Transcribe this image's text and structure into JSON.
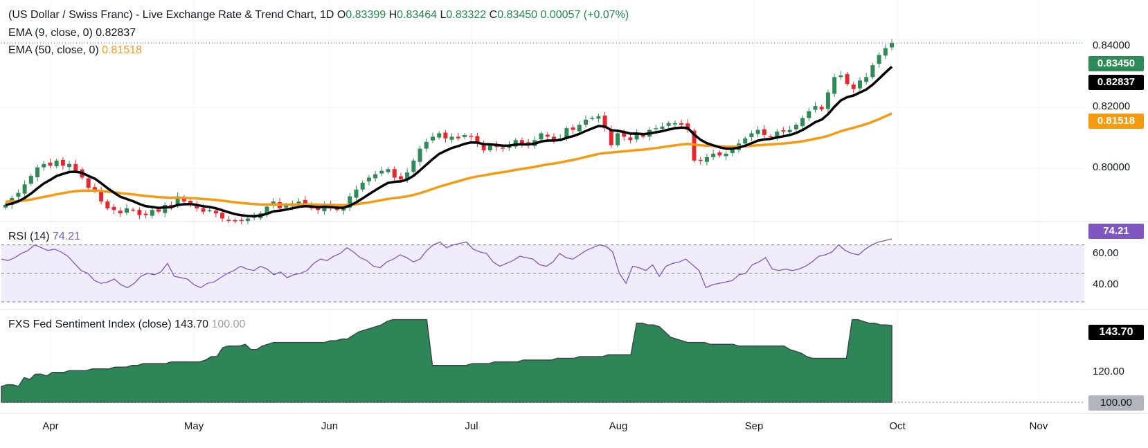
{
  "header": {
    "title": "(US Dollar / Swiss Franc) - Live Exchange Rate & Trend Chart, 1D",
    "open_label": "O",
    "open": "0.83399",
    "high_label": "H",
    "high": "0.83464",
    "low_label": "L",
    "low": "0.83322",
    "close_label": "C",
    "close": "0.83450",
    "change": "0.00057 (+0.07%)",
    "ema9_label": "EMA (9, close, 0)",
    "ema9_value": "0.82837",
    "ema50_label": "EMA (50, close, 0)",
    "ema50_value": "0.81518"
  },
  "rsi_panel": {
    "label": "RSI (14)",
    "value": "74.21"
  },
  "fxs_panel": {
    "label": "FXS Fed Sentiment Index (close)",
    "value": "143.70",
    "baseline": "100.00"
  },
  "price_axis": {
    "ticks": [
      "0.84000",
      "0.82000",
      "0.80000"
    ],
    "last_price": "0.83450",
    "ema9_badge": "0.82837",
    "ema50_badge": "0.81518"
  },
  "rsi_axis": {
    "ticks": [
      "60.00",
      "40.00"
    ],
    "badge": "74.21"
  },
  "fxs_axis": {
    "ticks": [
      "120.00"
    ],
    "badge": "143.70",
    "base_badge": "100.00"
  },
  "x_axis": {
    "labels": [
      "Apr",
      "May",
      "Jun",
      "Jul",
      "Aug",
      "Sep",
      "Oct",
      "Nov"
    ]
  },
  "colors": {
    "up": "#2e8b57",
    "down": "#e5282e",
    "ema9": "#000000",
    "ema50": "#f59b12",
    "rsi": "#7e57c2",
    "fxs_fill": "#2e8555",
    "last_price_badge": "#2e8b57"
  },
  "chart_data": [
    {
      "type": "candlestick",
      "title": "(US Dollar / Swiss Franc) - Live Exchange Rate & Trend Chart, 1D",
      "ylim": [
        0.7825,
        0.8455
      ],
      "x_labels": [
        "Apr",
        "May",
        "Jun",
        "Jul",
        "Aug",
        "Sep",
        "Oct",
        "Nov"
      ],
      "close_series": [
        0.787,
        0.789,
        0.7905,
        0.793,
        0.7955,
        0.798,
        0.799,
        0.7985,
        0.8,
        0.7985,
        0.799,
        0.797,
        0.795,
        0.792,
        0.7915,
        0.788,
        0.786,
        0.7855,
        0.7845,
        0.786,
        0.7855,
        0.784,
        0.784,
        0.7855,
        0.785,
        0.787,
        0.7865,
        0.7895,
        0.788,
        0.7875,
        0.786,
        0.785,
        0.7855,
        0.7845,
        0.783,
        0.7825,
        0.7822,
        0.7825,
        0.783,
        0.7835,
        0.7845,
        0.7865,
        0.788,
        0.786,
        0.787,
        0.7875,
        0.788,
        0.7875,
        0.786,
        0.7855,
        0.787,
        0.786,
        0.7855,
        0.786,
        0.7895,
        0.7915,
        0.7935,
        0.795,
        0.796,
        0.797,
        0.7975,
        0.795,
        0.7945,
        0.7965,
        0.8,
        0.8035,
        0.8055,
        0.807,
        0.808,
        0.8065,
        0.807,
        0.8065,
        0.8075,
        0.807,
        0.805,
        0.803,
        0.8045,
        0.804,
        0.8035,
        0.8045,
        0.806,
        0.805,
        0.8045,
        0.806,
        0.808,
        0.807,
        0.806,
        0.8065,
        0.8095,
        0.809,
        0.8105,
        0.812,
        0.8125,
        0.813,
        0.8095,
        0.8045,
        0.808,
        0.807,
        0.806,
        0.808,
        0.807,
        0.809,
        0.8095,
        0.81,
        0.811,
        0.811,
        0.8105,
        0.809,
        0.8,
        0.8,
        0.801,
        0.802,
        0.8015,
        0.802,
        0.8035,
        0.805,
        0.8065,
        0.808,
        0.809,
        0.8075,
        0.807,
        0.8085,
        0.8085,
        0.809,
        0.8105,
        0.8125,
        0.8145,
        0.816,
        0.815,
        0.82,
        0.8245,
        0.825,
        0.8225,
        0.821,
        0.8235,
        0.8245,
        0.828,
        0.831,
        0.833,
        0.8345
      ]
    },
    {
      "type": "line",
      "series": [
        {
          "name": "EMA (9, close, 0)",
          "last_value": 0.82837
        },
        {
          "name": "EMA (50, close, 0)",
          "last_value": 0.81518
        }
      ]
    },
    {
      "type": "line",
      "title": "RSI (14)",
      "ylim": [
        30,
        80
      ],
      "levels": [
        70,
        50,
        30
      ],
      "series": [
        {
          "name": "RSI (14)",
          "values": [
            60,
            59,
            61,
            64,
            66,
            70,
            68,
            66,
            67,
            65,
            62,
            57,
            52,
            50,
            45,
            43,
            44,
            46,
            42,
            40,
            43,
            48,
            50,
            49,
            51,
            57,
            48,
            47,
            46,
            42,
            40,
            43,
            44,
            47,
            50,
            52,
            55,
            53,
            52,
            55,
            53,
            49,
            51,
            47,
            49,
            50,
            52,
            57,
            60,
            59,
            62,
            64,
            68,
            65,
            61,
            59,
            55,
            54,
            58,
            60,
            63,
            61,
            58,
            60,
            66,
            70,
            72,
            68,
            70,
            71,
            72,
            67,
            65,
            64,
            58,
            55,
            57,
            59,
            62,
            61,
            60,
            56,
            55,
            58,
            64,
            61,
            60,
            63,
            66,
            68,
            70,
            69,
            65,
            50,
            43,
            55,
            54,
            52,
            56,
            48,
            55,
            57,
            58,
            60,
            56,
            52,
            40,
            42,
            43,
            44,
            45,
            49,
            50,
            56,
            58,
            61,
            53,
            52,
            53,
            52,
            53,
            55,
            58,
            62,
            63,
            65,
            70,
            66,
            64,
            63,
            67,
            70,
            72,
            73,
            74.21
          ]
        }
      ]
    },
    {
      "type": "area",
      "title": "FXS Fed Sentiment Index (close)",
      "ylim": [
        100,
        150
      ],
      "baseline": 100,
      "series": [
        {
          "name": "FXS Fed Sentiment Index (close)",
          "values": [
            109,
            110,
            110,
            109,
            114,
            113,
            116,
            116,
            115,
            117,
            117,
            117,
            118,
            118,
            118,
            118,
            119,
            119,
            119,
            119,
            120,
            120,
            120,
            121,
            121,
            122,
            122,
            122,
            122,
            122,
            123,
            123,
            123,
            123,
            123,
            123,
            124,
            126,
            126,
            131,
            132,
            132,
            132,
            133,
            130,
            130,
            132,
            133,
            134,
            134,
            134,
            134,
            134,
            134,
            134,
            134,
            134,
            134,
            135,
            135,
            136,
            136,
            138,
            140,
            141,
            142,
            143,
            144,
            146,
            147,
            147,
            147,
            147,
            147,
            147,
            147,
            121,
            121,
            121,
            121,
            121,
            121,
            121,
            122,
            122,
            122,
            122,
            123,
            123,
            123,
            123,
            123,
            124,
            124,
            124,
            124,
            124,
            124,
            125,
            125,
            125,
            125,
            126,
            126,
            126,
            126,
            126,
            127,
            127,
            127,
            127,
            127,
            145,
            145,
            144,
            144,
            143,
            140,
            137,
            136,
            135,
            134,
            134,
            134,
            134,
            133,
            133,
            133,
            133,
            133,
            132,
            132,
            132,
            132,
            132,
            132,
            132,
            132,
            132,
            130,
            129,
            128,
            126,
            125,
            125,
            125,
            125,
            125,
            125,
            125,
            147,
            147,
            146,
            145,
            145,
            144,
            144,
            143.7
          ]
        }
      ]
    }
  ]
}
